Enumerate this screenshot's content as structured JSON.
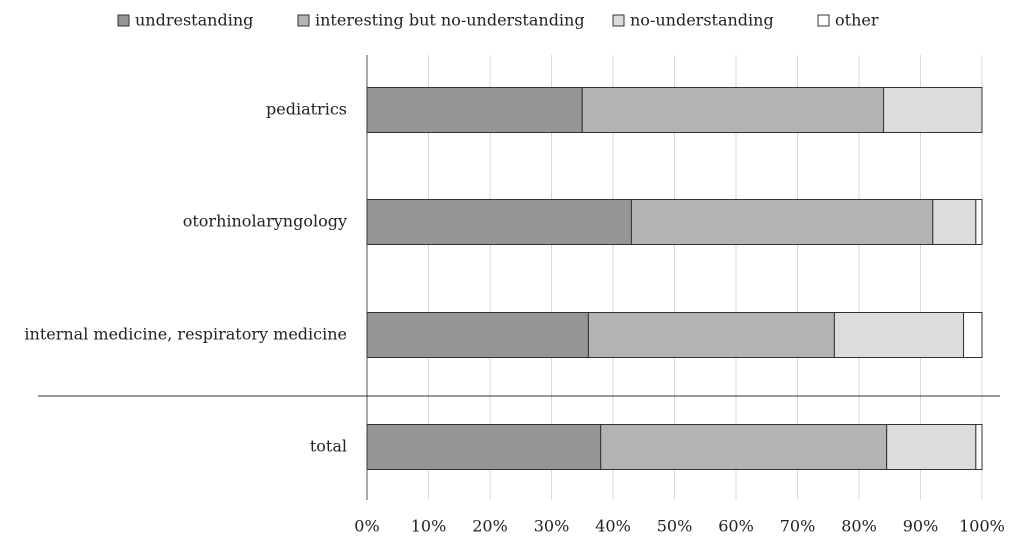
{
  "chart_data": {
    "type": "stacked-barh",
    "categories": [
      "pediatrics",
      "otorhinolaryngology",
      "internal medicine, respiratory medicine",
      "total"
    ],
    "series": [
      {
        "name": "undrestanding",
        "color": "#959597",
        "values": [
          35,
          43,
          36,
          38
        ]
      },
      {
        "name": "interesting but no-understanding",
        "color": "#b3b3b5",
        "values": [
          49,
          49,
          40,
          46.5
        ]
      },
      {
        "name": "no-understanding",
        "color": "#dcdcdd",
        "values": [
          16,
          7,
          21,
          14.5
        ]
      },
      {
        "name": "other",
        "color": "#ffffff",
        "values": [
          0,
          1,
          3,
          1
        ]
      }
    ],
    "xlim": [
      0,
      100
    ],
    "xticks": [
      {
        "value": 0,
        "label": "0%"
      },
      {
        "value": 10,
        "label": "10%"
      },
      {
        "value": 20,
        "label": "20%"
      },
      {
        "value": 30,
        "label": "30%"
      },
      {
        "value": 40,
        "label": "40%"
      },
      {
        "value": 50,
        "label": "50%"
      },
      {
        "value": 60,
        "label": "60%"
      },
      {
        "value": 70,
        "label": "70%"
      },
      {
        "value": 80,
        "label": "80%"
      },
      {
        "value": 90,
        "label": "90%"
      },
      {
        "value": 100,
        "label": "100%"
      }
    ],
    "grid": true,
    "legend": "top"
  }
}
